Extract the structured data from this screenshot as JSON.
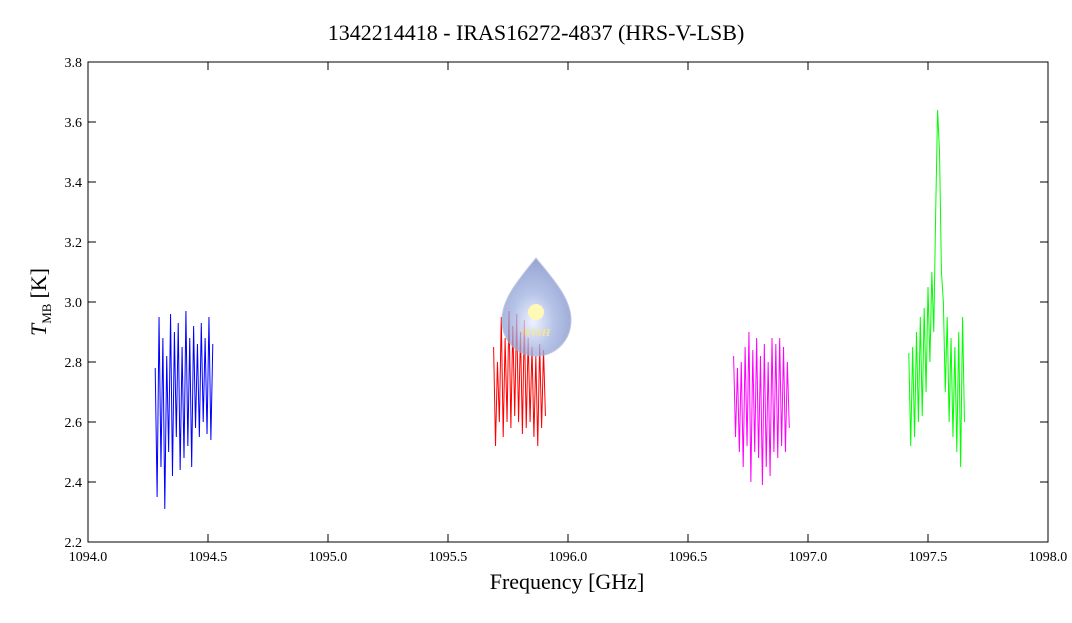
{
  "chart_data": {
    "type": "line",
    "title": "1342214418 - IRAS16272-4837 (HRS-V-LSB)",
    "x_label": "Frequency [GHz]",
    "y_label": [
      "T",
      "MB",
      "[K]"
    ],
    "watermark": "WISH",
    "xlim": [
      1094.0,
      1098.0
    ],
    "xticks": [
      {
        "value": 1094,
        "label": "1094.0"
      },
      {
        "value": 1094.5,
        "label": "1094.5"
      },
      {
        "value": 1095,
        "label": "1095.0"
      },
      {
        "value": 1095.5,
        "label": "1095.5"
      },
      {
        "value": 1096,
        "label": "1096.0"
      },
      {
        "value": 1096.5,
        "label": "1096.5"
      },
      {
        "value": 1097,
        "label": "1097.0"
      },
      {
        "value": 1097.5,
        "label": "1097.5"
      },
      {
        "value": 1098,
        "label": "1098.0"
      }
    ],
    "ylim": [
      2.2,
      3.8
    ],
    "yticks": [
      2.2,
      2.4,
      2.6,
      2.8,
      {
        "value": 3,
        "label": "3.0"
      },
      3.2,
      3.4,
      3.6,
      3.8
    ],
    "series": [
      {
        "color": "#0000ff",
        "x": [
          1094.28,
          1094.288,
          1094.296,
          1094.304,
          1094.312,
          1094.32,
          1094.328,
          1094.336,
          1094.344,
          1094.352,
          1094.36,
          1094.368,
          1094.376,
          1094.384,
          1094.392,
          1094.4,
          1094.408,
          1094.416,
          1094.424,
          1094.432,
          1094.44,
          1094.448,
          1094.456,
          1094.464,
          1094.472,
          1094.48,
          1094.488,
          1094.496,
          1094.504,
          1094.512,
          1094.52
        ],
        "values": [
          2.78,
          2.35,
          2.95,
          2.45,
          2.88,
          2.31,
          2.82,
          2.5,
          2.96,
          2.42,
          2.9,
          2.55,
          2.93,
          2.44,
          2.85,
          2.48,
          2.97,
          2.52,
          2.88,
          2.45,
          2.92,
          2.58,
          2.86,
          2.55,
          2.93,
          2.6,
          2.88,
          2.56,
          2.95,
          2.54,
          2.86
        ]
      },
      {
        "color": "#ff0000",
        "x": [
          1095.69,
          1095.698,
          1095.706,
          1095.714,
          1095.722,
          1095.73,
          1095.738,
          1095.746,
          1095.754,
          1095.762,
          1095.77,
          1095.778,
          1095.786,
          1095.794,
          1095.802,
          1095.81,
          1095.818,
          1095.826,
          1095.834,
          1095.842,
          1095.85,
          1095.858,
          1095.866,
          1095.874,
          1095.882,
          1095.89,
          1095.898,
          1095.906
        ],
        "values": [
          2.85,
          2.52,
          2.8,
          2.6,
          2.95,
          2.55,
          2.88,
          2.6,
          2.97,
          2.58,
          2.92,
          2.62,
          2.96,
          2.6,
          2.9,
          2.56,
          2.94,
          2.58,
          2.88,
          2.6,
          2.85,
          2.55,
          2.82,
          2.52,
          2.86,
          2.58,
          2.84,
          2.62
        ]
      },
      {
        "color": "#ff00ff",
        "x": [
          1096.69,
          1096.698,
          1096.706,
          1096.714,
          1096.722,
          1096.73,
          1096.738,
          1096.746,
          1096.754,
          1096.762,
          1096.77,
          1096.778,
          1096.786,
          1096.794,
          1096.802,
          1096.81,
          1096.818,
          1096.826,
          1096.834,
          1096.842,
          1096.85,
          1096.858,
          1096.866,
          1096.874,
          1096.882,
          1096.89,
          1096.898,
          1096.906,
          1096.914,
          1096.922
        ],
        "values": [
          2.82,
          2.55,
          2.78,
          2.5,
          2.8,
          2.45,
          2.85,
          2.52,
          2.9,
          2.4,
          2.84,
          2.5,
          2.88,
          2.48,
          2.82,
          2.39,
          2.86,
          2.45,
          2.8,
          2.42,
          2.88,
          2.5,
          2.86,
          2.48,
          2.88,
          2.52,
          2.85,
          2.5,
          2.8,
          2.58
        ]
      },
      {
        "color": "#00ff00",
        "x": [
          1097.42,
          1097.428,
          1097.436,
          1097.444,
          1097.452,
          1097.46,
          1097.468,
          1097.476,
          1097.484,
          1097.492,
          1097.5,
          1097.508,
          1097.516,
          1097.524,
          1097.532,
          1097.54,
          1097.548,
          1097.556,
          1097.564,
          1097.572,
          1097.58,
          1097.588,
          1097.596,
          1097.604,
          1097.612,
          1097.62,
          1097.628,
          1097.636,
          1097.644,
          1097.652
        ],
        "values": [
          2.83,
          2.52,
          2.85,
          2.55,
          2.9,
          2.6,
          2.95,
          2.62,
          2.98,
          2.7,
          3.05,
          2.8,
          3.1,
          2.9,
          3.3,
          3.64,
          3.5,
          3.1,
          3.0,
          2.7,
          2.95,
          2.6,
          2.88,
          2.55,
          2.85,
          2.5,
          2.9,
          2.45,
          2.95,
          2.6
        ]
      }
    ]
  }
}
